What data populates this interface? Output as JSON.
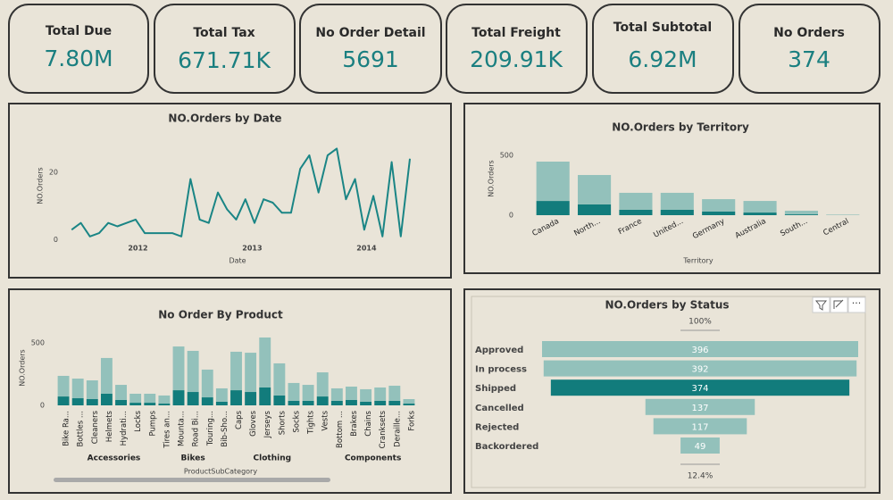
{
  "cards": [
    {
      "title": "Total Due",
      "value": "7.80M"
    },
    {
      "title": "Total Tax",
      "value": "671.71K"
    },
    {
      "title": "No Order Detail",
      "value": "5691"
    },
    {
      "title": "Total Freight",
      "value": "209.91K"
    },
    {
      "title": "Total Subtotal",
      "value": "6.92M"
    },
    {
      "title": "No Orders",
      "value": "374"
    }
  ],
  "chart_data": [
    {
      "type": "line",
      "title": "NO.Orders by Date",
      "x_label": "Date",
      "y_label": "NO.Orders",
      "x": [
        2011.92,
        2012.0,
        2012.08,
        2012.16,
        2012.24,
        2012.32,
        2012.4,
        2012.48,
        2012.56,
        2012.64,
        2012.72,
        2012.8,
        2012.88,
        2012.96,
        2013.04,
        2013.12,
        2013.2,
        2013.28,
        2013.36,
        2013.44,
        2013.52,
        2013.6,
        2013.68,
        2013.76,
        2013.84,
        2013.92,
        2014.0,
        2014.08,
        2014.16,
        2014.24,
        2014.32,
        2014.4,
        2014.48,
        2014.56,
        2014.64,
        2014.72,
        2014.8,
        2014.88
      ],
      "values": [
        3,
        5,
        1,
        2,
        5,
        4,
        5,
        6,
        2,
        2,
        2,
        2,
        1,
        18,
        6,
        5,
        14,
        9,
        6,
        12,
        5,
        12,
        11,
        8,
        8,
        21,
        25,
        14,
        25,
        27,
        12,
        18,
        3,
        13,
        1,
        23,
        1,
        24
      ],
      "color": "#1a8585",
      "xlim": [
        2011.84,
        2014.95
      ],
      "ylim": [
        -3,
        30
      ],
      "xticks": [
        {
          "value": 2012.5,
          "label": "2012"
        },
        {
          "value": 2013.5,
          "label": "2013"
        },
        {
          "value": 2014.5,
          "label": "2014"
        }
      ],
      "yticks": [
        0,
        20
      ],
      "grid": false
    },
    {
      "type": "bar",
      "stacked": true,
      "title": "NO.Orders by Territory",
      "x_label": "Territory",
      "y_label": "NO.Orders",
      "categories": [
        "Canada",
        "North...",
        "France",
        "United...",
        "Germany",
        "Australia",
        "South...",
        "Central"
      ],
      "series": [
        {
          "color": "#127c7c",
          "values": [
            119,
            90,
            45,
            45,
            30,
            22,
            7,
            1
          ]
        },
        {
          "color": "#93c1bb",
          "values": [
            329,
            246,
            142,
            142,
            104,
            97,
            30,
            4
          ]
        }
      ],
      "ylim": [
        0,
        560
      ],
      "yticks": [
        0,
        500
      ],
      "grid": false
    },
    {
      "type": "bar",
      "stacked": true,
      "title": "No Order By Product",
      "x_label": "ProductSubCategory",
      "y_label": "NO.Orders",
      "groups": [
        {
          "name": "Accessories",
          "categories": [
            "Bike Ra...",
            "Bottles ...",
            "Cleaners",
            "Helmets",
            "Hydrati...",
            "Locks",
            "Pumps",
            "Tires an..."
          ]
        },
        {
          "name": "Bikes",
          "categories": [
            "Mounta...",
            "Road Bi...",
            "Touring..."
          ]
        },
        {
          "name": "Clothing",
          "categories": [
            "Bib-Sho...",
            "Caps",
            "Gloves",
            "Jerseys",
            "Shorts",
            "Socks",
            "Tights",
            "Vests"
          ]
        },
        {
          "name": "Components",
          "categories": [
            "Bottom ...",
            "Brakes",
            "Chains",
            "Cranksets",
            "Deraille...",
            "Forks"
          ]
        }
      ],
      "series": [
        {
          "color": "#127c7c",
          "values": [
            71,
            57,
            50,
            93,
            43,
            21,
            21,
            14,
            121,
            107,
            64,
            29,
            121,
            107,
            143,
            79,
            36,
            36,
            71,
            36,
            43,
            29,
            36,
            36,
            14
          ]
        },
        {
          "color": "#93c1bb",
          "values": [
            165,
            157,
            150,
            286,
            121,
            72,
            72,
            65,
            350,
            329,
            222,
            107,
            308,
            314,
            400,
            257,
            143,
            128,
            193,
            100,
            107,
            100,
            107,
            121,
            36
          ]
        }
      ],
      "ylim": [
        0,
        600
      ],
      "yticks": [
        0,
        500
      ],
      "grid": false
    },
    {
      "type": "funnel",
      "title": "NO.Orders by Status",
      "top_label": "100%",
      "bottom_label": "12.4%",
      "categories": [
        "Approved",
        "In process",
        "Shipped",
        "Cancelled",
        "Rejected",
        "Backordered"
      ],
      "values": [
        396,
        392,
        374,
        137,
        117,
        49
      ],
      "colors": [
        "#93c1bb",
        "#93c1bb",
        "#127c7c",
        "#93c1bb",
        "#93c1bb",
        "#93c1bb"
      ]
    }
  ]
}
